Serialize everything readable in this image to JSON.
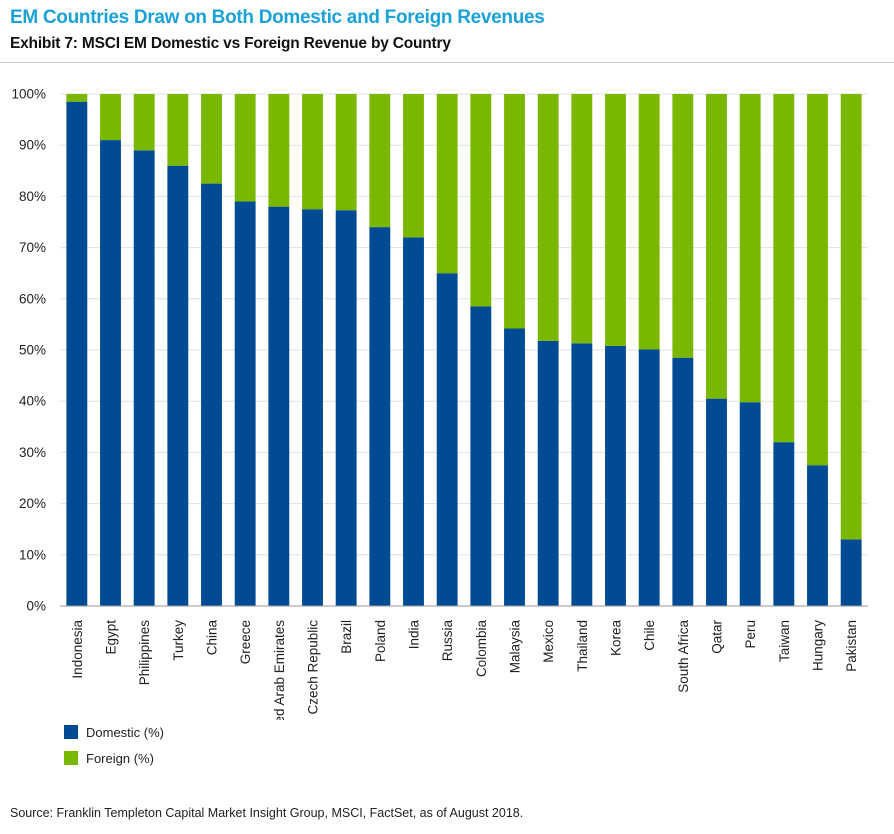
{
  "header": {
    "headline": "EM Countries Draw on Both Domestic and Foreign Revenues",
    "subtitle": "Exhibit 7: MSCI EM Domestic vs Foreign Revenue by Country"
  },
  "colors": {
    "domestic": "#004b93",
    "foreign": "#7ab800",
    "headline": "#1aa2d8"
  },
  "chart_data": {
    "type": "bar",
    "stacked": true,
    "title": "Exhibit 7: MSCI EM Domestic vs Foreign Revenue by Country",
    "xlabel": "",
    "ylabel": "",
    "ylim": [
      0,
      100
    ],
    "yticks": [
      0,
      10,
      20,
      30,
      40,
      50,
      60,
      70,
      80,
      90,
      100
    ],
    "ytick_labels": [
      "0%",
      "10%",
      "20%",
      "30%",
      "40%",
      "50%",
      "60%",
      "70%",
      "80%",
      "90%",
      "100%"
    ],
    "grid": true,
    "legend_position": "bottom-left",
    "categories": [
      "Indonesia",
      "Egypt",
      "Philippines",
      "Turkey",
      "China",
      "Greece",
      "United Arab Emirates",
      "Czech Republic",
      "Brazil",
      "Poland",
      "India",
      "Russia",
      "Colombia",
      "Malaysia",
      "Mexico",
      "Thailand",
      "Korea",
      "Chile",
      "South Africa",
      "Qatar",
      "Peru",
      "Taiwan",
      "Hungary",
      "Pakistan"
    ],
    "series": [
      {
        "name": "Domestic (%)",
        "values": [
          98.5,
          91,
          89,
          86,
          82.5,
          79,
          78,
          77.5,
          77.3,
          74,
          72,
          65,
          58.5,
          54.2,
          51.8,
          51.3,
          50.8,
          50.1,
          48.5,
          40.5,
          39.8,
          32,
          27.5,
          13
        ]
      },
      {
        "name": "Foreign (%)",
        "values": [
          1.5,
          9,
          11,
          14,
          17.5,
          21,
          22,
          22.5,
          22.7,
          26,
          28,
          35,
          41.5,
          45.8,
          48.2,
          48.7,
          49.2,
          49.9,
          51.5,
          59.5,
          60.2,
          68,
          72.5,
          87
        ]
      }
    ]
  },
  "legend": {
    "domestic_label": "Domestic (%)",
    "foreign_label": "Foreign (%)"
  },
  "footer": {
    "source": "Source: Franklin Templeton Capital Market Insight Group, MSCI, FactSet, as of August 2018."
  }
}
